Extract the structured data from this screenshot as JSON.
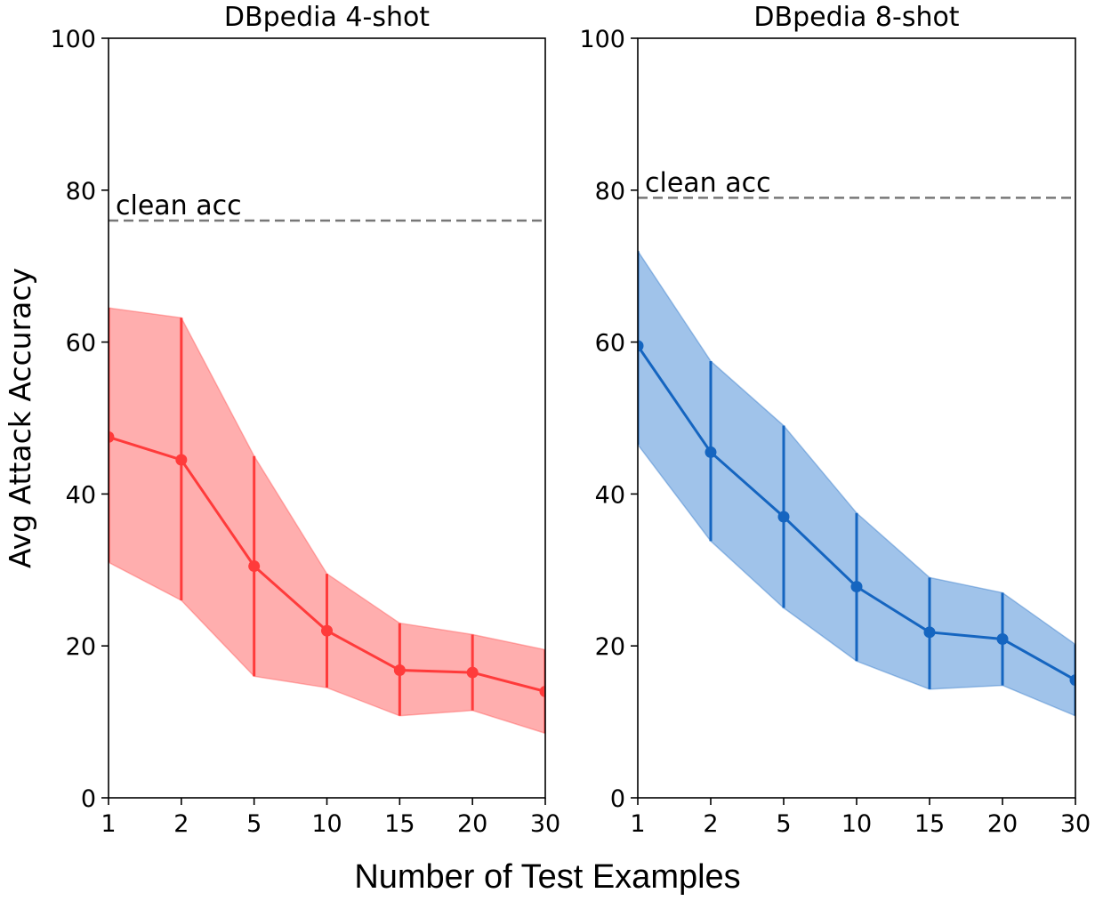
{
  "figure": {
    "ylabel": "Avg Attack Accuracy",
    "xlabel": "Number of Test Examples"
  },
  "chart_data": [
    {
      "type": "line",
      "title": "DBpedia 4-shot",
      "categories": [
        "1",
        "2",
        "5",
        "10",
        "15",
        "20",
        "30"
      ],
      "values": [
        47.5,
        44.5,
        30.5,
        22.0,
        16.8,
        16.5,
        14.0
      ],
      "lower": [
        31.0,
        26.0,
        16.0,
        14.5,
        10.8,
        11.5,
        8.5
      ],
      "upper": [
        64.5,
        63.2,
        45.0,
        29.5,
        23.0,
        21.5,
        19.5
      ],
      "clean_acc": 76.0,
      "clean_label": "clean acc",
      "ylim": [
        0,
        100
      ],
      "yticks": [
        "0",
        "20",
        "40",
        "60",
        "80",
        "100"
      ],
      "color": "#ff3b3b",
      "band_color": "#ffa0a0"
    },
    {
      "type": "line",
      "title": "DBpedia 8-shot",
      "categories": [
        "1",
        "2",
        "5",
        "10",
        "15",
        "20",
        "30"
      ],
      "values": [
        59.5,
        45.5,
        37.0,
        27.8,
        21.8,
        20.9,
        15.5
      ],
      "lower": [
        46.5,
        33.8,
        25.0,
        18.0,
        14.3,
        14.8,
        10.8
      ],
      "upper": [
        72.0,
        57.5,
        49.0,
        37.5,
        29.0,
        27.0,
        20.2
      ],
      "clean_acc": 79.0,
      "clean_label": "clean acc",
      "ylim": [
        0,
        100
      ],
      "yticks": [
        "0",
        "20",
        "40",
        "60",
        "80",
        "100"
      ],
      "color": "#1565c0",
      "band_color": "#8fb9e6"
    }
  ]
}
